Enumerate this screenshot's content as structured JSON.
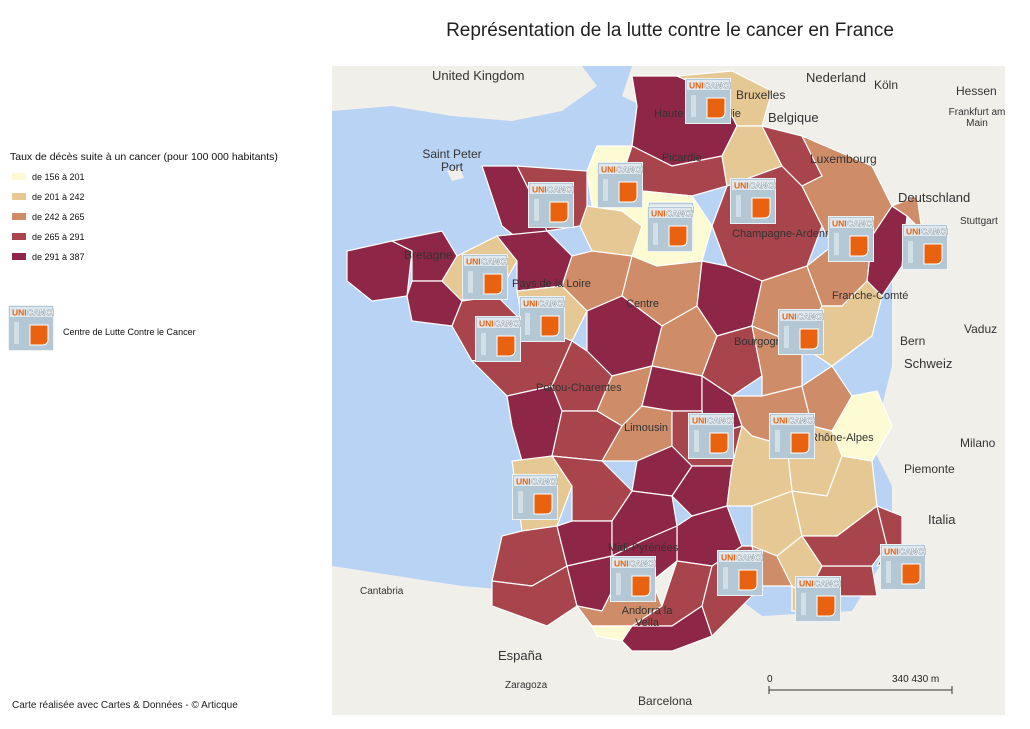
{
  "title": "Représentation de la lutte contre le cancer en France",
  "legend": {
    "title": "Taux de décès suite à un cancer (pour 100 000 habitants)",
    "classes": [
      {
        "label": "de 156 à 201",
        "color": "#fdfbd3"
      },
      {
        "label": "de 201 à 242",
        "color": "#e6c895"
      },
      {
        "label": "de 242 à 265",
        "color": "#cf8c68"
      },
      {
        "label": "de 265 à 291",
        "color": "#a8444b"
      },
      {
        "label": "de 291 à 387",
        "color": "#8e2747"
      }
    ],
    "marker": {
      "label": "Centre de Lutte Contre le Cancer",
      "logo_text": "UNICANCER"
    }
  },
  "credit": "Carte réalisée avec Cartes & Données - © Articque",
  "scale": {
    "start": "0",
    "end": "340 430 m"
  },
  "colors": {
    "sea": "#b9d3f5",
    "land": "#f1efea",
    "france_border": "#ffffff",
    "logo_orange": "#e8620f",
    "logo_blue": "#b3c8d4"
  },
  "places": [
    {
      "name": "United Kingdom",
      "size": 13
    },
    {
      "name": "Nederland",
      "size": 13
    },
    {
      "name": "Köln",
      "size": 12
    },
    {
      "name": "Hessen",
      "size": 12
    },
    {
      "name": "Bruxelles",
      "size": 12
    },
    {
      "name": "Belgique",
      "size": 13
    },
    {
      "name": "Frankfurt am Main",
      "size": 10
    },
    {
      "name": "Saint Peter Port",
      "size": 12
    },
    {
      "name": "Luxembourg",
      "size": 12
    },
    {
      "name": "Deutschland",
      "size": 13
    },
    {
      "name": "Stuttgart",
      "size": 10
    },
    {
      "name": "Vaduz",
      "size": 12
    },
    {
      "name": "Bern",
      "size": 12
    },
    {
      "name": "Schweiz",
      "size": 13
    },
    {
      "name": "Milano",
      "size": 12
    },
    {
      "name": "Piemonte",
      "size": 12
    },
    {
      "name": "Italia",
      "size": 13
    },
    {
      "name": "Cantabria",
      "size": 10
    },
    {
      "name": "España",
      "size": 13
    },
    {
      "name": "Zaragoza",
      "size": 10
    },
    {
      "name": "Barcelona",
      "size": 12
    },
    {
      "name": "Bretagne",
      "size": 12
    },
    {
      "name": "Picardie",
      "size": 11
    },
    {
      "name": "Champagne-Ardenne",
      "size": 11
    },
    {
      "name": "Franche-Comté",
      "size": 11
    },
    {
      "name": "Bourgogne",
      "size": 11
    },
    {
      "name": "Centre",
      "size": 11
    },
    {
      "name": "Poitou-Charentes",
      "size": 11
    },
    {
      "name": "Limousin",
      "size": 11
    },
    {
      "name": "Rhône-Alpes",
      "size": 11
    },
    {
      "name": "Midi-Pyrénées",
      "size": 11
    },
    {
      "name": "Andorra la Vella",
      "size": 11
    },
    {
      "name": "Pays de la Loire",
      "size": 11
    },
    {
      "name": "Haute-Normandie",
      "size": 11
    }
  ],
  "centres": [
    {
      "id": "lille"
    },
    {
      "id": "rouen"
    },
    {
      "id": "caen"
    },
    {
      "id": "paris-1"
    },
    {
      "id": "reims"
    },
    {
      "id": "nancy"
    },
    {
      "id": "strasbourg"
    },
    {
      "id": "angers"
    },
    {
      "id": "nantes"
    },
    {
      "id": "rennes"
    },
    {
      "id": "dijon"
    },
    {
      "id": "clermont"
    },
    {
      "id": "lyon"
    },
    {
      "id": "bordeaux"
    },
    {
      "id": "toulouse"
    },
    {
      "id": "montpellier"
    },
    {
      "id": "marseille"
    },
    {
      "id": "nice"
    },
    {
      "id": "paris-2"
    }
  ]
}
